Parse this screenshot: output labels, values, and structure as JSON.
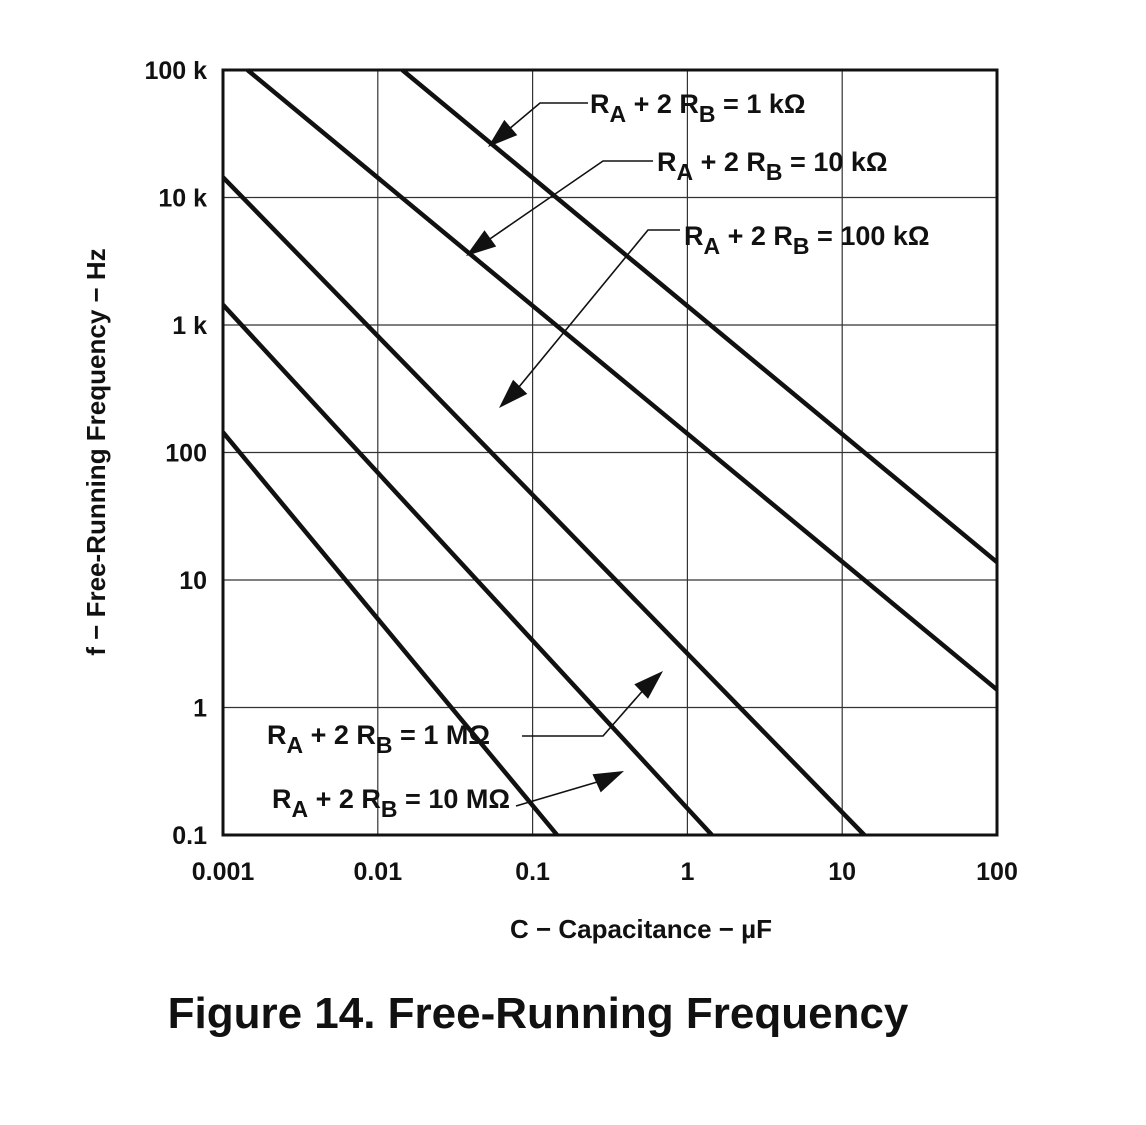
{
  "caption": "Figure 14.  Free-Running Frequency",
  "chart_data": {
    "type": "line",
    "title": "",
    "xlabel": "C − Capacitance − µF",
    "ylabel": "f − Free-Running Frequency − Hz",
    "x_scale": "log",
    "y_scale": "log",
    "xlim": [
      0.001,
      100
    ],
    "ylim": [
      0.1,
      100000
    ],
    "grid": true,
    "x_ticks": [
      0.001,
      0.01,
      0.1,
      1,
      10,
      100
    ],
    "x_tick_labels": [
      "0.001",
      "0.01",
      "0.1",
      "1",
      "10",
      "100"
    ],
    "y_ticks": [
      0.1,
      1,
      10,
      100,
      1000,
      10000,
      100000
    ],
    "y_tick_labels": [
      "0.1",
      "1",
      "10",
      "100",
      "1 k",
      "10 k",
      "100 k"
    ],
    "series": [
      {
        "name": "RA + 2 RB = 1 kΩ",
        "label_parts": [
          "R",
          "A",
          " + 2 R",
          "B",
          " = 1 kΩ"
        ],
        "x": [
          0.0144,
          100
        ],
        "y": [
          100000,
          13.8
        ]
      },
      {
        "name": "RA + 2 RB = 10 kΩ",
        "label_parts": [
          "R",
          "A",
          " + 2 R",
          "B",
          " = 10 kΩ"
        ],
        "x": [
          0.00144,
          100
        ],
        "y": [
          100000,
          1.38
        ]
      },
      {
        "name": "RA + 2 RB = 100 kΩ",
        "label_parts": [
          "R",
          "A",
          " + 2 R",
          "B",
          " = 100 kΩ"
        ],
        "x": [
          0.001,
          13.9
        ],
        "y": [
          14400,
          0.1
        ]
      },
      {
        "name": "RA + 2 RB = 1 MΩ",
        "label_parts": [
          "R",
          "A",
          " + 2 R",
          "B",
          " = 1 MΩ"
        ],
        "x": [
          0.001,
          1.44
        ],
        "y": [
          1440,
          0.1
        ]
      },
      {
        "name": "RA + 2 RB = 10 MΩ",
        "label_parts": [
          "R",
          "A",
          " + 2 R",
          "B",
          " = 10 MΩ"
        ],
        "x": [
          0.001,
          0.144
        ],
        "y": [
          144,
          0.1
        ]
      }
    ]
  }
}
